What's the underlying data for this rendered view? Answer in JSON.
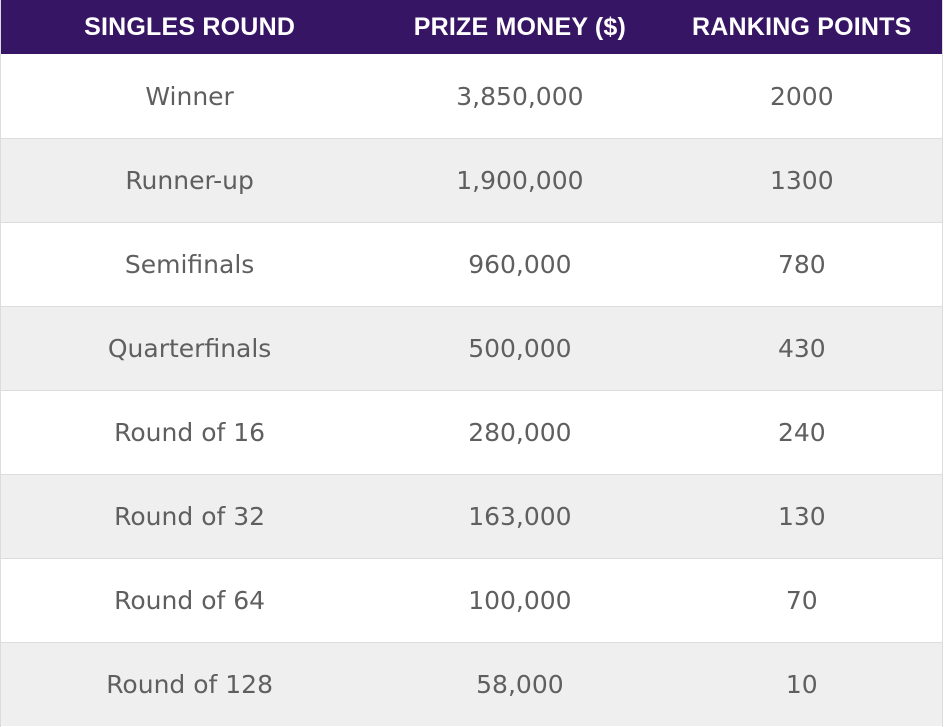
{
  "headers": {
    "round": "SINGLES ROUND",
    "prize": "PRIZE MONEY ($)",
    "points": "RANKING POINTS"
  },
  "rows": [
    {
      "round": "Winner",
      "prize": "3,850,000",
      "points": "2000"
    },
    {
      "round": "Runner-up",
      "prize": "1,900,000",
      "points": "1300"
    },
    {
      "round": "Semifinals",
      "prize": "960,000",
      "points": "780"
    },
    {
      "round": "Quarterfinals",
      "prize": "500,000",
      "points": "430"
    },
    {
      "round": "Round of 16",
      "prize": "280,000",
      "points": "240"
    },
    {
      "round": "Round of 32",
      "prize": "163,000",
      "points": "130"
    },
    {
      "round": "Round of 64",
      "prize": "100,000",
      "points": "70"
    },
    {
      "round": "Round of 128",
      "prize": "58,000",
      "points": "10"
    }
  ],
  "colors": {
    "header_bg": "#371565",
    "header_text": "#ffffff",
    "row_alt_bg": "#efefef",
    "row_text": "#5f5f5f"
  }
}
